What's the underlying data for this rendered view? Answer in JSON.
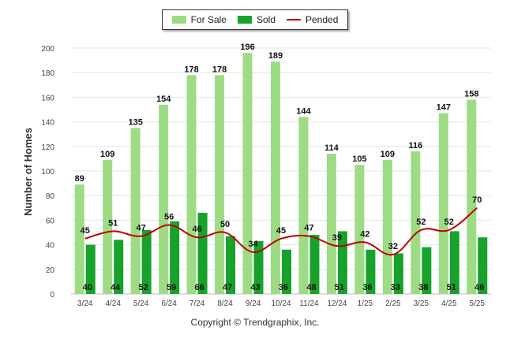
{
  "chart_data": {
    "type": "bar",
    "ylabel": "Number of Homes",
    "ylim": [
      0,
      200
    ],
    "yticks": [
      0,
      20,
      40,
      60,
      80,
      100,
      120,
      140,
      160,
      180,
      200
    ],
    "grid": true,
    "legend_position": "top-center",
    "categories": [
      "3/24",
      "4/24",
      "5/24",
      "6/24",
      "7/24",
      "8/24",
      "9/24",
      "10/24",
      "11/24",
      "12/24",
      "1/25",
      "2/25",
      "3/25",
      "4/25",
      "5/25"
    ],
    "series": [
      {
        "name": "For Sale",
        "kind": "bar",
        "color": "#9ddc84",
        "values": [
          89,
          109,
          135,
          154,
          178,
          178,
          196,
          189,
          144,
          114,
          105,
          109,
          116,
          147,
          158
        ]
      },
      {
        "name": "Sold",
        "kind": "bar",
        "color": "#16a22b",
        "values": [
          40,
          44,
          52,
          59,
          66,
          47,
          43,
          36,
          48,
          51,
          36,
          33,
          38,
          51,
          46
        ]
      },
      {
        "name": "Pended",
        "kind": "line",
        "color": "#c00000",
        "values": [
          45,
          51,
          47,
          56,
          46,
          50,
          34,
          45,
          47,
          39,
          42,
          32,
          52,
          52,
          70
        ]
      }
    ]
  },
  "footer": {
    "copyright": "Copyright © Trendgraphix, Inc."
  }
}
